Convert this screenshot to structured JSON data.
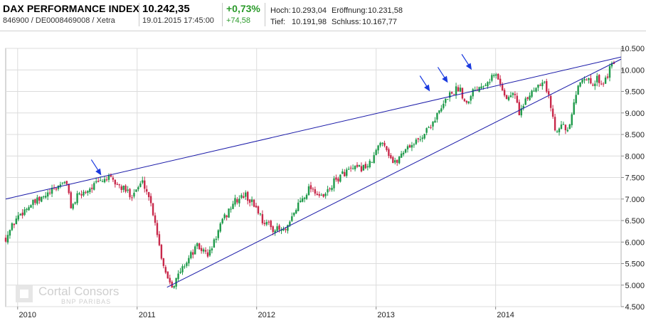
{
  "instrument": {
    "name": "DAX PERFORMANCE INDEX",
    "identifier": "846900 / DE0008469008 / Xetra",
    "last_price": "10.242,35",
    "timestamp": "19.01.2015 17:45:00",
    "change_pct": "+0,73%",
    "change_abs": "+74,58"
  },
  "stats": {
    "high_label": "Hoch:",
    "high_value": "10.293,04",
    "open_label": "Eröffnung:",
    "open_value": "10.231,58",
    "low_label": "Tief:",
    "low_value": "10.191,98",
    "close_label": "Schluss:",
    "close_value": "10.167,77"
  },
  "watermark": {
    "brand": "Cortal Consors",
    "sub": "BNP PARIBAS"
  },
  "colors": {
    "up": "#1e9a4a",
    "down": "#c8284a",
    "trendline": "#1a1aa8",
    "arrow": "#1a3adf",
    "grid": "#dcdcdc",
    "change_positive": "#2a9a2a"
  },
  "chart_data": {
    "type": "candlestick",
    "x_ticks": [
      "2010",
      "2011",
      "2012",
      "2013",
      "2014"
    ],
    "y_ticks": [
      "10.500",
      "10.000",
      "9.500",
      "9.000",
      "8.500",
      "8.000",
      "7.500",
      "7.000",
      "6.500",
      "6.000",
      "5.500",
      "5.000",
      "4.500"
    ],
    "ylim": [
      4500,
      10500
    ],
    "x_range": [
      2009.9,
      2015.05
    ],
    "series_path": [
      [
        2009.9,
        6100
      ],
      [
        2010.0,
        6600
      ],
      [
        2010.1,
        6850
      ],
      [
        2010.2,
        7000
      ],
      [
        2010.3,
        7200
      ],
      [
        2010.4,
        7450
      ],
      [
        2010.45,
        6800
      ],
      [
        2010.5,
        7050
      ],
      [
        2010.6,
        7250
      ],
      [
        2010.75,
        7500
      ],
      [
        2010.85,
        7300
      ],
      [
        2010.95,
        7100
      ],
      [
        2011.05,
        7400
      ],
      [
        2011.1,
        7050
      ],
      [
        2011.15,
        6500
      ],
      [
        2011.2,
        5700
      ],
      [
        2011.25,
        5200
      ],
      [
        2011.3,
        5000
      ],
      [
        2011.4,
        5500
      ],
      [
        2011.5,
        5900
      ],
      [
        2011.6,
        5700
      ],
      [
        2011.7,
        6400
      ],
      [
        2011.8,
        6900
      ],
      [
        2011.9,
        7100
      ],
      [
        2012.0,
        6800
      ],
      [
        2012.05,
        6500
      ],
      [
        2012.15,
        6300
      ],
      [
        2012.25,
        6250
      ],
      [
        2012.35,
        6900
      ],
      [
        2012.45,
        7300
      ],
      [
        2012.55,
        7000
      ],
      [
        2012.65,
        7400
      ],
      [
        2012.75,
        7650
      ],
      [
        2012.85,
        7700
      ],
      [
        2012.95,
        7800
      ],
      [
        2013.05,
        8400
      ],
      [
        2013.1,
        8100
      ],
      [
        2013.15,
        7800
      ],
      [
        2013.25,
        8200
      ],
      [
        2013.35,
        8350
      ],
      [
        2013.45,
        8700
      ],
      [
        2013.55,
        9100
      ],
      [
        2013.6,
        9400
      ],
      [
        2013.7,
        9600
      ],
      [
        2013.75,
        9200
      ],
      [
        2013.8,
        9500
      ],
      [
        2013.9,
        9700
      ],
      [
        2014.0,
        9900
      ],
      [
        2014.05,
        9600
      ],
      [
        2014.1,
        9300
      ],
      [
        2014.15,
        9500
      ],
      [
        2014.2,
        9000
      ],
      [
        2014.3,
        9500
      ],
      [
        2014.4,
        9800
      ],
      [
        2014.45,
        9300
      ],
      [
        2014.5,
        8600
      ],
      [
        2014.55,
        8800
      ],
      [
        2014.6,
        8500
      ],
      [
        2014.65,
        9100
      ],
      [
        2014.7,
        9700
      ],
      [
        2014.75,
        9900
      ],
      [
        2014.8,
        9600
      ],
      [
        2014.85,
        9800
      ],
      [
        2014.9,
        9700
      ],
      [
        2015.0,
        10242
      ]
    ],
    "trendlines": [
      {
        "from": [
          2009.9,
          7000
        ],
        "to": [
          2015.05,
          10300
        ]
      },
      {
        "from": [
          2011.25,
          4950
        ],
        "to": [
          2015.05,
          10250
        ]
      }
    ],
    "arrows_at": [
      [
        2010.7,
        7550
      ],
      [
        2013.45,
        9500
      ],
      [
        2013.6,
        9700
      ],
      [
        2013.8,
        10000
      ]
    ]
  }
}
